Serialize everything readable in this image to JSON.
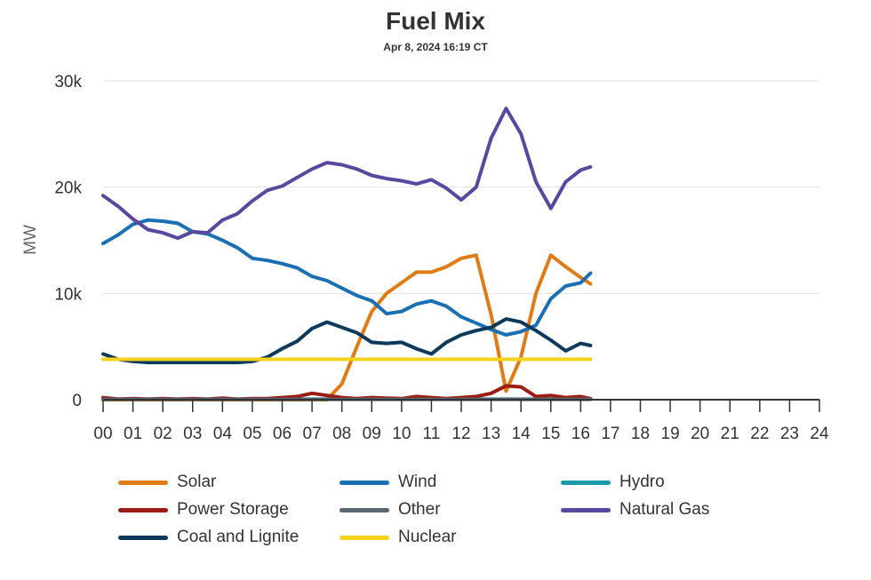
{
  "chart_data": {
    "type": "line",
    "title": "Fuel Mix",
    "subtitle": "Apr 8, 2024 16:19 CT",
    "xlabel": "",
    "ylabel": "MW",
    "xlim": [
      0,
      24
    ],
    "ylim": [
      0,
      30000
    ],
    "x_ticks": [
      "00",
      "01",
      "02",
      "03",
      "04",
      "05",
      "06",
      "07",
      "08",
      "09",
      "10",
      "11",
      "12",
      "13",
      "14",
      "15",
      "16",
      "17",
      "18",
      "19",
      "20",
      "21",
      "22",
      "23",
      "24"
    ],
    "y_ticks": [
      {
        "value": 0,
        "label": "0"
      },
      {
        "value": 10000,
        "label": "10k"
      },
      {
        "value": 20000,
        "label": "20k"
      },
      {
        "value": 30000,
        "label": "30k"
      }
    ],
    "grid": true,
    "legend": "bottom",
    "x": [
      0,
      0.5,
      1,
      1.5,
      2,
      2.5,
      3,
      3.5,
      4,
      4.5,
      5,
      5.5,
      6,
      6.5,
      7,
      7.5,
      8,
      8.5,
      9,
      9.5,
      10,
      10.5,
      11,
      11.5,
      12,
      12.5,
      13,
      13.5,
      14,
      14.5,
      15,
      15.5,
      16,
      16.33
    ],
    "series": [
      {
        "name": "Solar",
        "color": "#e07b16",
        "values": [
          0,
          0,
          0,
          0,
          0,
          0,
          0,
          0,
          0,
          0,
          0,
          0,
          0,
          0,
          0,
          0,
          1500,
          5000,
          8300,
          10000,
          11000,
          12000,
          12000,
          12500,
          13300,
          13600,
          8000,
          800,
          4000,
          10000,
          13600,
          12500,
          11500,
          10900
        ]
      },
      {
        "name": "Wind",
        "color": "#1a6fb5",
        "values": [
          14700,
          15500,
          16500,
          16900,
          16800,
          16600,
          15800,
          15600,
          15000,
          14300,
          13300,
          13100,
          12800,
          12400,
          11600,
          11200,
          10500,
          9800,
          9300,
          8100,
          8300,
          9000,
          9300,
          8800,
          7800,
          7200,
          6600,
          6100,
          6400,
          7000,
          9500,
          10700,
          11000,
          11900
        ]
      },
      {
        "name": "Hydro",
        "color": "#1a9aa8",
        "values": [
          50,
          50,
          50,
          50,
          50,
          50,
          50,
          50,
          50,
          50,
          50,
          50,
          50,
          50,
          50,
          50,
          50,
          50,
          50,
          50,
          50,
          50,
          50,
          50,
          50,
          50,
          50,
          50,
          50,
          50,
          50,
          50,
          50,
          50
        ]
      },
      {
        "name": "Power Storage",
        "color": "#9b1d14",
        "values": [
          200,
          50,
          100,
          50,
          100,
          50,
          100,
          50,
          150,
          50,
          100,
          100,
          200,
          300,
          600,
          400,
          200,
          100,
          200,
          150,
          100,
          300,
          200,
          100,
          200,
          300,
          600,
          1300,
          1200,
          300,
          400,
          200,
          300,
          100
        ]
      },
      {
        "name": "Other",
        "color": "#5b6770",
        "values": [
          30,
          30,
          30,
          30,
          30,
          30,
          30,
          30,
          30,
          30,
          30,
          30,
          30,
          30,
          30,
          30,
          30,
          30,
          30,
          30,
          30,
          30,
          30,
          30,
          30,
          30,
          30,
          30,
          30,
          30,
          30,
          30,
          30,
          30
        ]
      },
      {
        "name": "Natural Gas",
        "color": "#5a48a0",
        "values": [
          19200,
          18200,
          17000,
          16000,
          15700,
          15200,
          15800,
          15700,
          16900,
          17500,
          18700,
          19700,
          20100,
          20900,
          21700,
          22300,
          22100,
          21700,
          21100,
          20800,
          20600,
          20300,
          20700,
          19900,
          18800,
          20000,
          24600,
          27400,
          25000,
          20500,
          18000,
          20500,
          21600,
          21900
        ]
      },
      {
        "name": "Coal and Lignite",
        "color": "#0d3a5c",
        "values": [
          4300,
          3800,
          3600,
          3500,
          3500,
          3500,
          3500,
          3500,
          3500,
          3500,
          3600,
          4000,
          4800,
          5500,
          6700,
          7300,
          6800,
          6300,
          5400,
          5300,
          5400,
          4800,
          4300,
          5400,
          6100,
          6500,
          6800,
          7600,
          7300,
          6500,
          5600,
          4600,
          5300,
          5100
        ]
      },
      {
        "name": "Nuclear",
        "color": "#f2d21b",
        "values": [
          3800,
          3800,
          3800,
          3800,
          3800,
          3800,
          3800,
          3800,
          3800,
          3800,
          3800,
          3800,
          3800,
          3800,
          3800,
          3800,
          3800,
          3800,
          3800,
          3800,
          3800,
          3800,
          3800,
          3800,
          3800,
          3800,
          3800,
          3800,
          3800,
          3800,
          3800,
          3800,
          3800,
          3800
        ]
      }
    ],
    "legend_order": [
      "Solar",
      "Wind",
      "Hydro",
      "Power Storage",
      "Other",
      "Natural Gas",
      "Coal and Lignite",
      "Nuclear"
    ]
  }
}
